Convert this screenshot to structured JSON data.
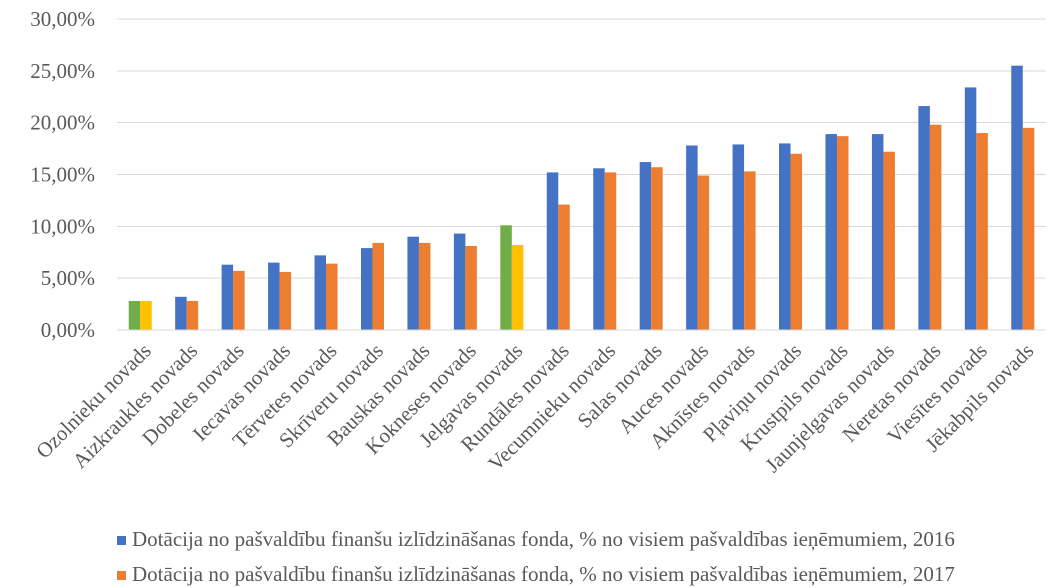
{
  "chart_data": {
    "type": "bar",
    "categories": [
      "Ozolnieku novads",
      "Aizkraukles novads",
      "Dobeles novads",
      "Iecavas novads",
      "Tērvetes novads",
      "Skrīveru novads",
      "Bauskas novads",
      "Kokneses novads",
      "Jelgavas novads",
      "Rundāles novads",
      "Vecumnieku novads",
      "Salas novads",
      "Auces novads",
      "Aknīstes novads",
      "Pļaviņu novads",
      "Krustpils novads",
      "Jaunjelgavas novads",
      "Neretas novads",
      "Viesītes novads",
      "Jēkabpils novads"
    ],
    "series": [
      {
        "name": "Dotācija no pašvaldību finanšu izlīdzināšanas fonda, % no visiem pašvaldības ieņēmumiem, 2016",
        "color": "#4472C4",
        "values": [
          2.8,
          3.2,
          6.3,
          6.5,
          7.2,
          7.9,
          9.0,
          9.3,
          10.1,
          15.2,
          15.6,
          16.2,
          17.8,
          17.9,
          18.0,
          18.9,
          18.9,
          21.6,
          23.4,
          25.5
        ],
        "point_colors": [
          "#70AD47",
          null,
          null,
          null,
          null,
          null,
          null,
          null,
          "#70AD47",
          null,
          null,
          null,
          null,
          null,
          null,
          null,
          null,
          null,
          null,
          null
        ]
      },
      {
        "name": "Dotācija no pašvaldību finanšu izlīdzināšanas fonda, % no visiem pašvaldības ieņēmumiem, 2017",
        "color": "#ED7D31",
        "values": [
          2.8,
          2.8,
          5.7,
          5.6,
          6.4,
          8.4,
          8.4,
          8.1,
          8.2,
          12.1,
          15.2,
          15.7,
          14.9,
          15.3,
          17.0,
          18.7,
          17.2,
          19.8,
          19.0,
          19.5
        ],
        "point_colors": [
          "#FFC000",
          null,
          null,
          null,
          null,
          null,
          null,
          null,
          "#FFC000",
          null,
          null,
          null,
          null,
          null,
          null,
          null,
          null,
          null,
          null,
          null
        ]
      }
    ],
    "ylim": [
      0,
      30
    ],
    "yticks": [
      0,
      5,
      10,
      15,
      20,
      25,
      30
    ],
    "ytick_labels": [
      "0,00%",
      "5,00%",
      "10,00%",
      "15,00%",
      "20,00%",
      "25,00%",
      "30,00%"
    ],
    "grid": "horizontal",
    "legend_position": "bottom"
  }
}
